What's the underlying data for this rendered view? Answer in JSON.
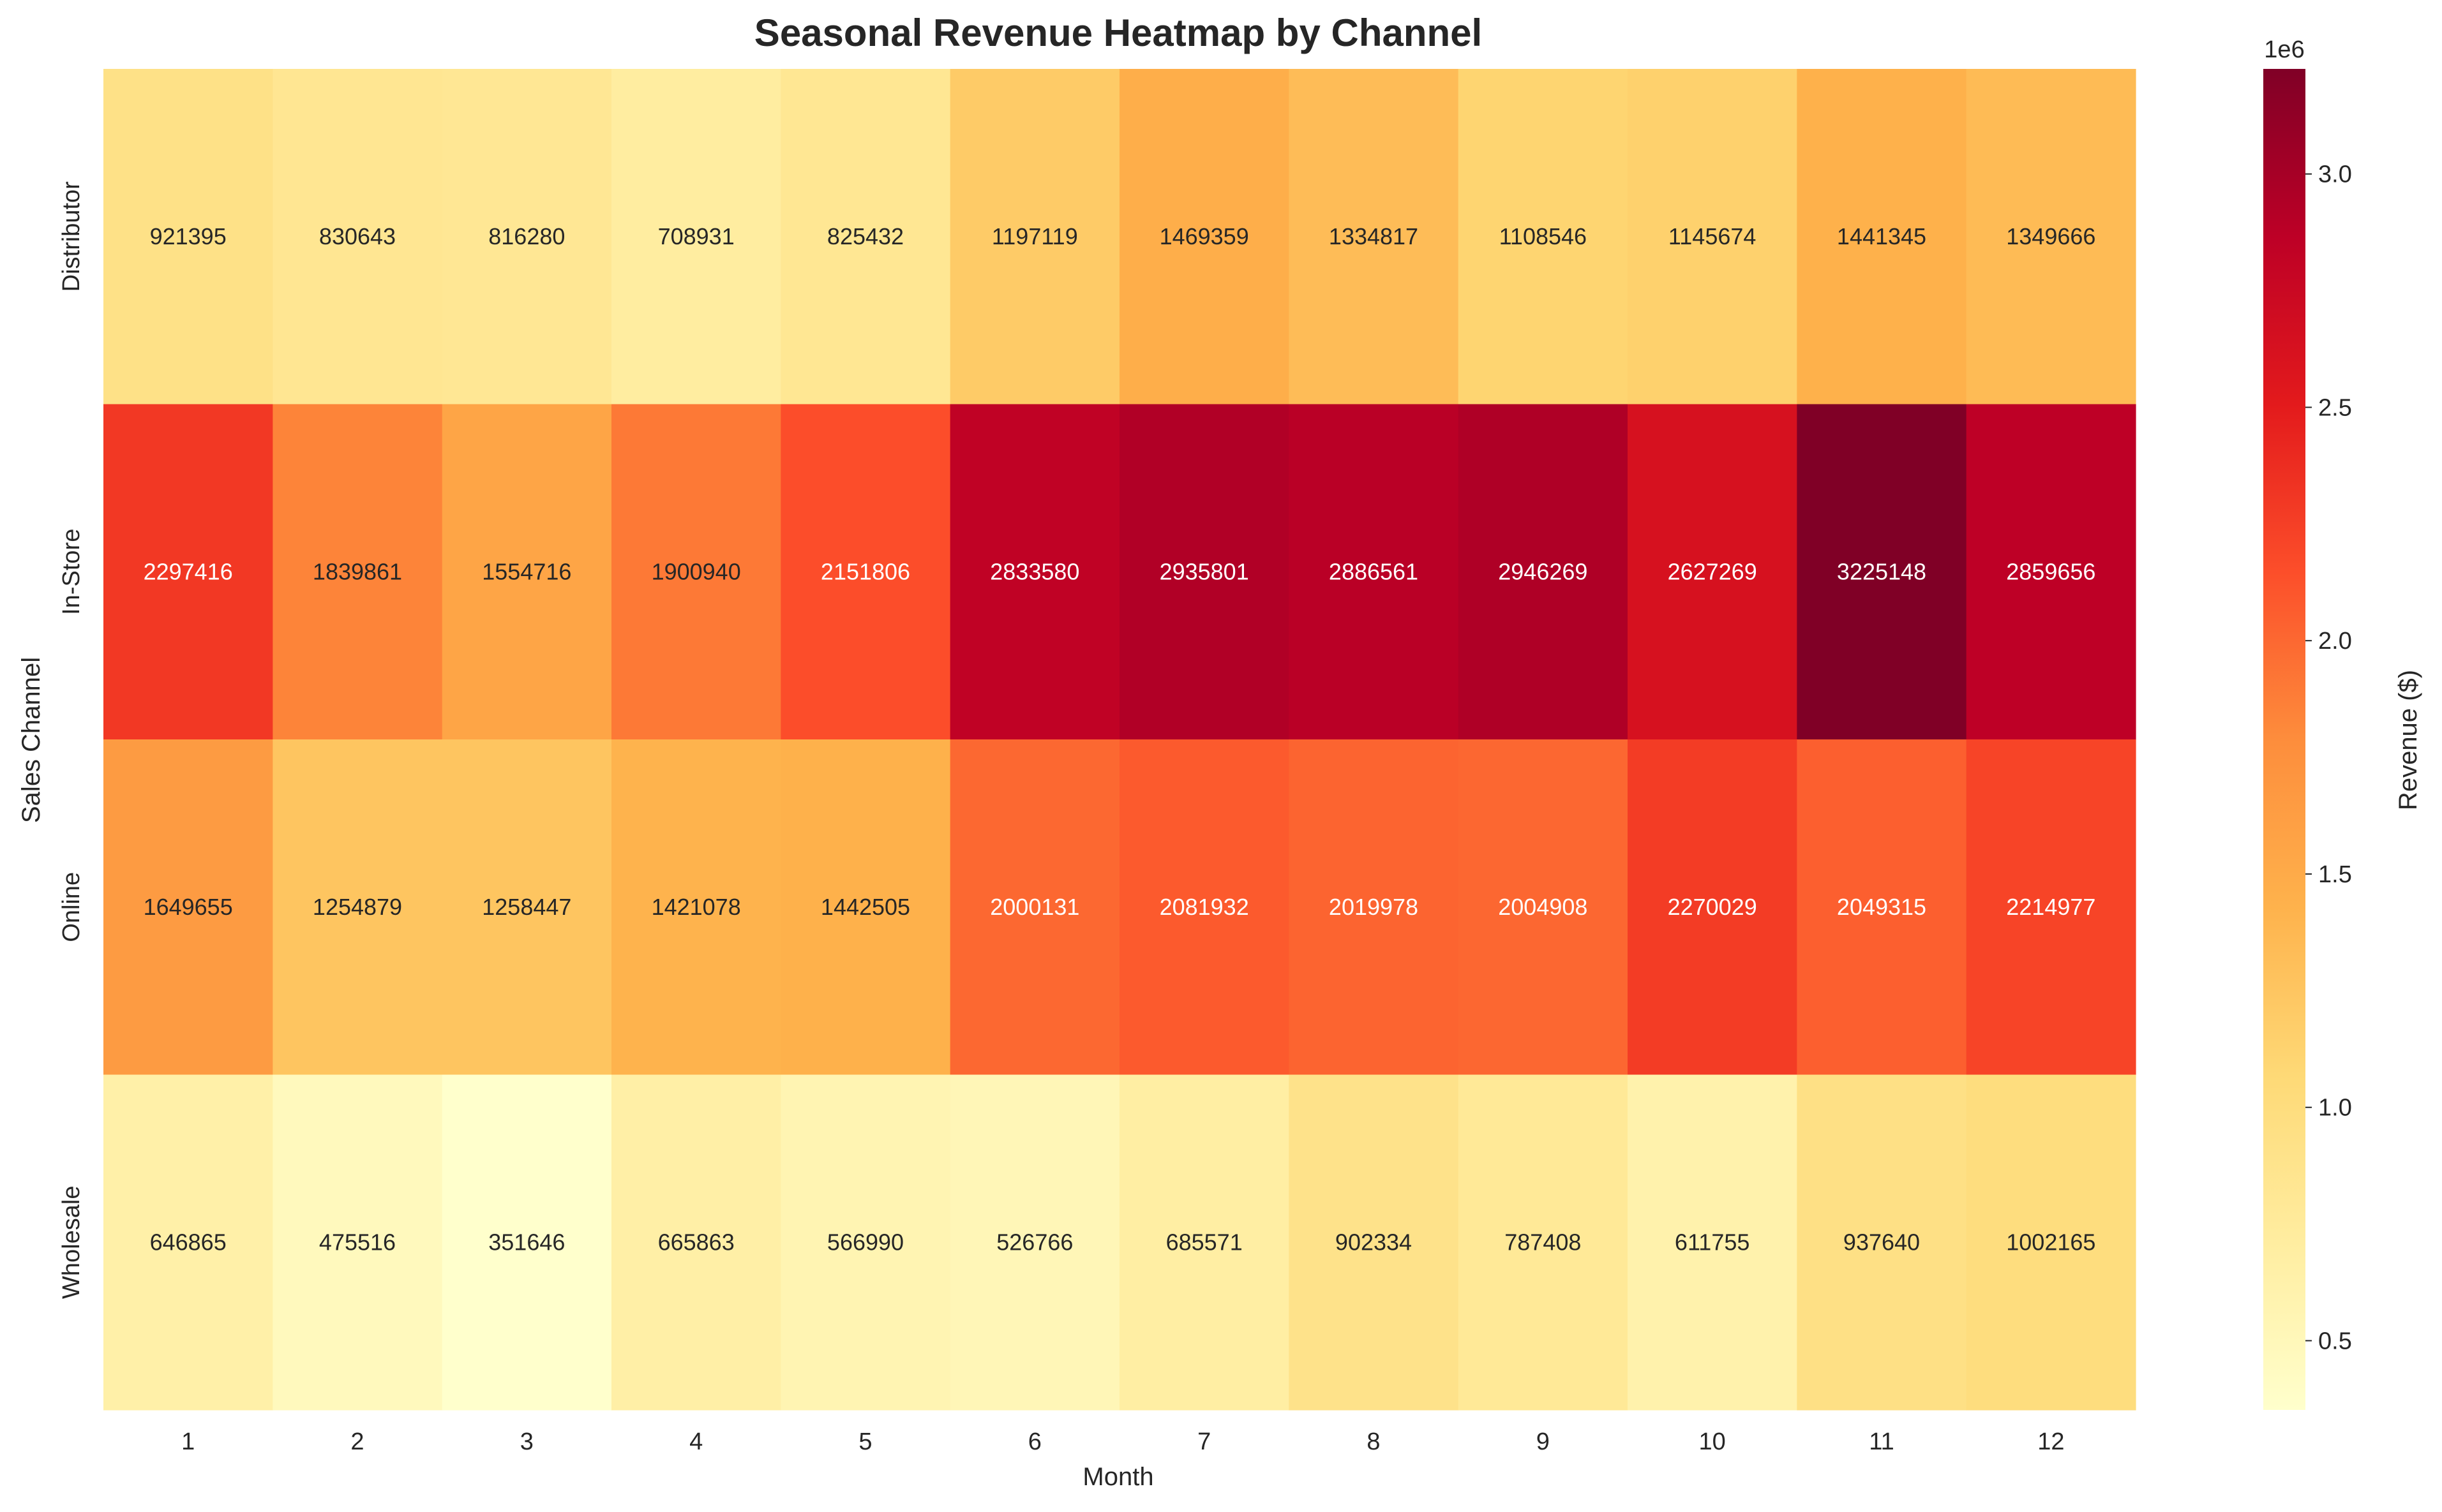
{
  "chart_data": {
    "type": "heatmap",
    "title": "Seasonal Revenue Heatmap by Channel",
    "xlabel": "Month",
    "ylabel": "Sales Channel",
    "x": [
      "1",
      "2",
      "3",
      "4",
      "5",
      "6",
      "7",
      "8",
      "9",
      "10",
      "11",
      "12"
    ],
    "y": [
      "Distributor",
      "In-Store",
      "Online",
      "Wholesale"
    ],
    "values": [
      [
        921395,
        830643,
        816280,
        708931,
        825432,
        1197119,
        1469359,
        1334817,
        1108546,
        1145674,
        1441345,
        1349666
      ],
      [
        2297416,
        1839861,
        1554716,
        1900940,
        2151806,
        2833580,
        2935801,
        2886561,
        2946269,
        2627269,
        3225148,
        2859656
      ],
      [
        1649655,
        1254879,
        1258447,
        1421078,
        1442505,
        2000131,
        2081932,
        2019978,
        2004908,
        2270029,
        2049315,
        2214977
      ],
      [
        646865,
        475516,
        351646,
        665863,
        566990,
        526766,
        685571,
        902334,
        787408,
        611755,
        937640,
        1002165
      ]
    ],
    "colormap": "YlOrRd",
    "colorbar": {
      "label": "Revenue ($)",
      "offset_label": "1e6",
      "min": 351646,
      "max": 3225148,
      "ticks": [
        0.5,
        1.0,
        1.5,
        2.0,
        2.5,
        3.0
      ]
    }
  }
}
